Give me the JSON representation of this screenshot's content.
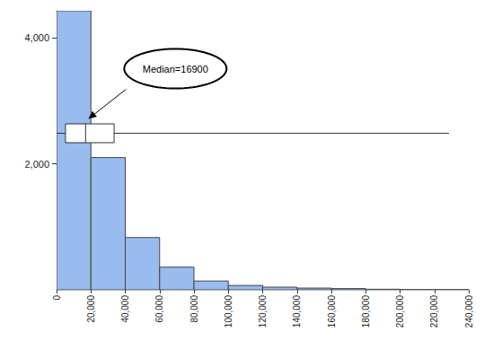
{
  "chart_data": {
    "type": "histogram",
    "bins": [
      0,
      20000,
      40000,
      60000,
      80000,
      100000,
      120000,
      140000,
      160000,
      180000,
      200000,
      220000,
      240000
    ],
    "values": [
      4430,
      2100,
      830,
      360,
      140,
      70,
      43,
      28,
      20,
      10,
      5,
      5
    ],
    "color": "#99bbee",
    "xlim": [
      0,
      240000
    ],
    "xticks": [
      0,
      20000,
      40000,
      60000,
      80000,
      100000,
      120000,
      140000,
      160000,
      180000,
      200000,
      220000,
      240000
    ],
    "ylim": [
      0,
      4430
    ],
    "yticks": [
      2000,
      4000
    ],
    "grid": false,
    "boxplot": {
      "min": 0,
      "q1": 5200,
      "median": 16900,
      "q3": 33500,
      "max": 228500
    },
    "annotations": [
      "Median=16900"
    ]
  }
}
